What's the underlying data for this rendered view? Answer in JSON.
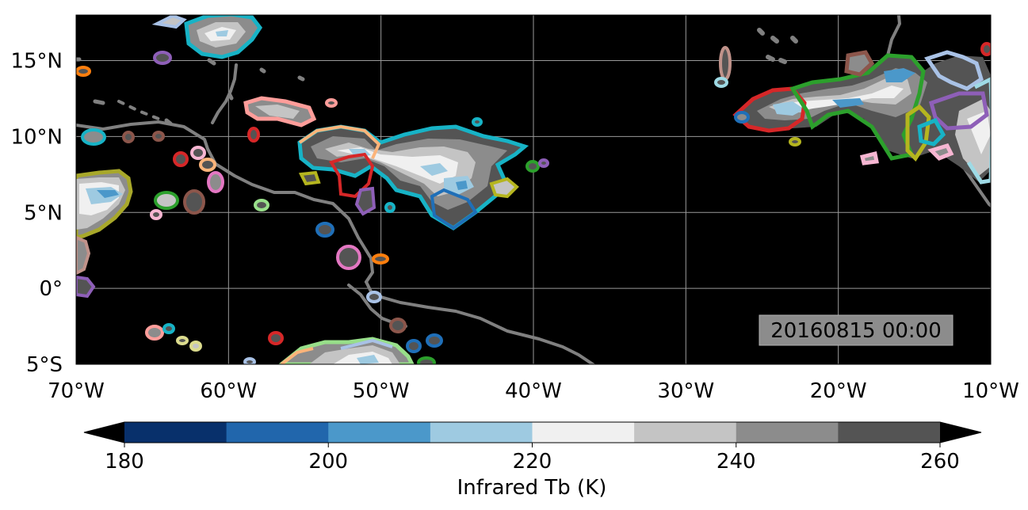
{
  "map": {
    "timestamp": "20160815 00:00",
    "lon_ticks": [
      {
        "value": -70,
        "label": "70°W"
      },
      {
        "value": -60,
        "label": "60°W"
      },
      {
        "value": -50,
        "label": "50°W"
      },
      {
        "value": -40,
        "label": "40°W"
      },
      {
        "value": -30,
        "label": "30°W"
      },
      {
        "value": -20,
        "label": "20°W"
      },
      {
        "value": -10,
        "label": "10°W"
      }
    ],
    "lat_ticks": [
      {
        "value": 15,
        "label": "15°N"
      },
      {
        "value": 10,
        "label": "10°N"
      },
      {
        "value": 5,
        "label": "5°N"
      },
      {
        "value": 0,
        "label": "0°"
      },
      {
        "value": -5,
        "label": "5°S"
      }
    ],
    "lon_range": [
      -70,
      -10
    ],
    "lat_range": [
      -5,
      18
    ],
    "background": "#000000",
    "grid": true,
    "coastline_color": "#808080"
  },
  "colorbar": {
    "label": "Infrared Tb (K)",
    "tick_labels": [
      "180",
      "200",
      "220",
      "240",
      "260"
    ],
    "tick_values": [
      180,
      200,
      220,
      240,
      260
    ],
    "levels": [
      180,
      190,
      200,
      210,
      220,
      230,
      240,
      250,
      260
    ],
    "colors": [
      "#08306b",
      "#2166ac",
      "#4b98ca",
      "#9ecae1",
      "#f0f0f0",
      "#c4c4c4",
      "#8c8c8c",
      "#545454"
    ],
    "under_color": "#000000",
    "over_color": "#000000"
  }
}
